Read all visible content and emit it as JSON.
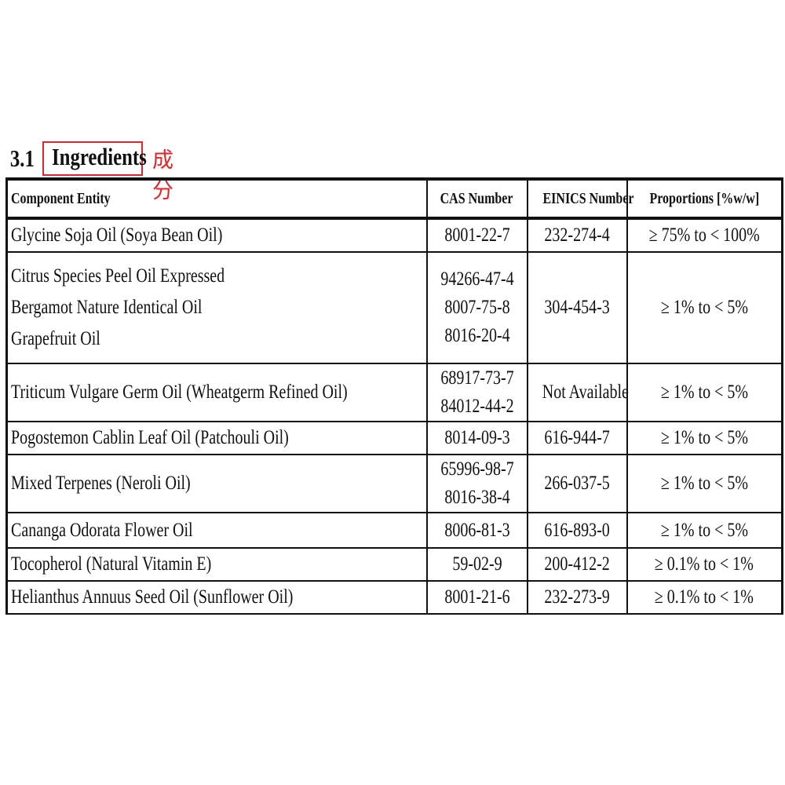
{
  "section": {
    "number": "3.1",
    "title": "Ingredients",
    "translation": "成分",
    "highlight_color": "#e0262a"
  },
  "table": {
    "headers": [
      "Component Entity",
      "CAS Number",
      "EINICS Number",
      "Proportions [%w/w]"
    ],
    "rows": [
      {
        "component": [
          "Glycine Soja Oil (Soya Bean Oil)"
        ],
        "cas": [
          "8001-22-7"
        ],
        "einics": "232-274-4",
        "proportion": "≥ 75% to < 100%"
      },
      {
        "component": [
          "Citrus Species Peel Oil Expressed",
          "Bergamot Nature Identical Oil",
          "Grapefruit Oil"
        ],
        "cas": [
          "94266-47-4",
          "8007-75-8",
          "8016-20-4"
        ],
        "einics": "304-454-3",
        "proportion": "≥ 1% to < 5%"
      },
      {
        "component": [
          "Triticum Vulgare Germ Oil (Wheatgerm Refined Oil)"
        ],
        "cas": [
          "68917-73-7",
          "84012-44-2"
        ],
        "einics": "Not Available",
        "proportion": "≥ 1% to < 5%"
      },
      {
        "component": [
          "Pogostemon Cablin Leaf Oil (Patchouli Oil)"
        ],
        "cas": [
          "8014-09-3"
        ],
        "einics": "616-944-7",
        "proportion": "≥ 1% to < 5%"
      },
      {
        "component": [
          "Mixed Terpenes (Neroli Oil)"
        ],
        "cas": [
          "65996-98-7",
          "8016-38-4"
        ],
        "einics": "266-037-5",
        "proportion": "≥ 1% to < 5%"
      },
      {
        "component": [
          "Cananga Odorata Flower Oil"
        ],
        "cas": [
          "8006-81-3"
        ],
        "einics": "616-893-0",
        "proportion": "≥ 1% to < 5%"
      },
      {
        "component": [
          "Tocopherol (Natural Vitamin E)"
        ],
        "cas": [
          "59-02-9"
        ],
        "einics": "200-412-2",
        "proportion": "≥ 0.1% to < 1%"
      },
      {
        "component": [
          "Helianthus Annuus Seed Oil (Sunflower Oil)"
        ],
        "cas": [
          "8001-21-6"
        ],
        "einics": "232-273-9",
        "proportion": "≥ 0.1% to < 1%"
      }
    ]
  }
}
